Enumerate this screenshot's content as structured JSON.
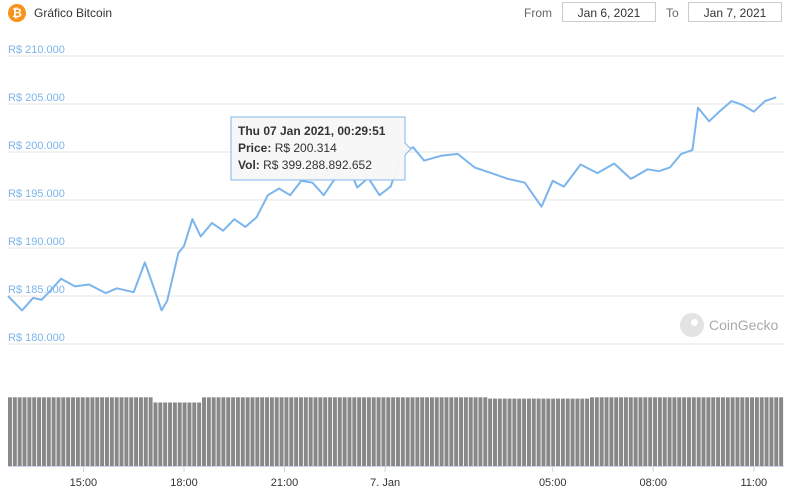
{
  "header": {
    "title": "Gráfico Bitcoin",
    "icon": "bitcoin-icon",
    "icon_glyph": "₿",
    "from_label": "From",
    "from_value": "Jan 6, 2021",
    "to_label": "To",
    "to_value": "Jan 7, 2021"
  },
  "watermark": {
    "text": "CoinGecko",
    "icon": "coingecko-logo-icon"
  },
  "colors": {
    "line": "#7cb5ec",
    "volume": "#888888",
    "grid": "#e6e6e6",
    "bitcoin": "#f7931a"
  },
  "tooltip": {
    "date": "Thu 07 Jan 2021, 00:29:51",
    "price_label": "Price:",
    "price_value": "R$ 200.314",
    "vol_label": "Vol:",
    "vol_value": "R$ 399.288.892.652"
  },
  "chart_data": {
    "type": "line",
    "title": "",
    "xlabel": "",
    "ylabel": "",
    "ylim": [
      180000,
      210000
    ],
    "yticks": [
      "R$ 180.000",
      "R$ 185.000",
      "R$ 190.000",
      "R$ 195.000",
      "R$ 200.000",
      "R$ 205.000",
      "R$ 210.000"
    ],
    "xticks": [
      "15:00",
      "18:00",
      "21:00",
      "7. Jan",
      "05:00",
      "08:00",
      "11:00"
    ],
    "grid": true,
    "series": [
      {
        "x": [
          "Jan 6 12:45",
          "Jan 6 13:10",
          "Jan 6 13:30",
          "Jan 6 13:45",
          "Jan 6 14:00",
          "Jan 6 14:20",
          "Jan 6 14:45",
          "Jan 6 15:10",
          "Jan 6 15:40",
          "Jan 6 16:00",
          "Jan 6 16:30",
          "Jan 6 16:50",
          "Jan 6 17:10",
          "Jan 6 17:20",
          "Jan 6 17:30",
          "Jan 6 17:50",
          "Jan 6 18:00",
          "Jan 6 18:15",
          "Jan 6 18:30",
          "Jan 6 18:50",
          "Jan 6 19:10",
          "Jan 6 19:30",
          "Jan 6 19:50",
          "Jan 6 20:10",
          "Jan 6 20:30",
          "Jan 6 20:50",
          "Jan 6 21:10",
          "Jan 6 21:30",
          "Jan 6 21:50",
          "Jan 6 22:10",
          "Jan 6 22:30",
          "Jan 6 22:50",
          "Jan 6 23:10",
          "Jan 6 23:30",
          "Jan 6 23:50",
          "Jan 7 00:10",
          "Jan 7 00:29",
          "Jan 7 00:50",
          "Jan 7 01:10",
          "Jan 7 01:40",
          "Jan 7 02:10",
          "Jan 7 02:40",
          "Jan 7 03:10",
          "Jan 7 03:40",
          "Jan 7 04:10",
          "Jan 7 04:40",
          "Jan 7 05:00",
          "Jan 7 05:20",
          "Jan 7 05:50",
          "Jan 7 06:20",
          "Jan 7 06:50",
          "Jan 7 07:20",
          "Jan 7 07:50",
          "Jan 7 08:10",
          "Jan 7 08:30",
          "Jan 7 08:50",
          "Jan 7 09:10",
          "Jan 7 09:20",
          "Jan 7 09:40",
          "Jan 7 10:00",
          "Jan 7 10:20",
          "Jan 7 10:40",
          "Jan 7 11:00",
          "Jan 7 11:20",
          "Jan 7 11:40"
        ],
        "values": [
          185000,
          183500,
          184800,
          184600,
          185500,
          186800,
          186000,
          186200,
          185300,
          185800,
          185400,
          188500,
          185200,
          183500,
          184500,
          189500,
          190200,
          193000,
          191200,
          192600,
          191800,
          193000,
          192200,
          193200,
          195500,
          196200,
          195500,
          197000,
          196800,
          195500,
          197200,
          199200,
          196300,
          197300,
          195500,
          196400,
          199800,
          200500,
          199100,
          199600,
          199800,
          198400,
          197800,
          197200,
          196800,
          194300,
          197000,
          196400,
          198700,
          197800,
          198800,
          197200,
          198200,
          198000,
          198400,
          199800,
          200200,
          204600,
          203200,
          204300,
          205300,
          204900,
          204200,
          205300,
          205700
        ]
      }
    ],
    "volume": {
      "count": 160,
      "ylim": [
        0,
        140000000000
      ],
      "values_approx": "≈ R$ 106 bi por barra na maior parte do período, caindo para ≈ R$ 98 bi por volta das 17:00–18:30 e para ≈ R$ 104 bi por volta das 03:00–06:00"
    }
  }
}
